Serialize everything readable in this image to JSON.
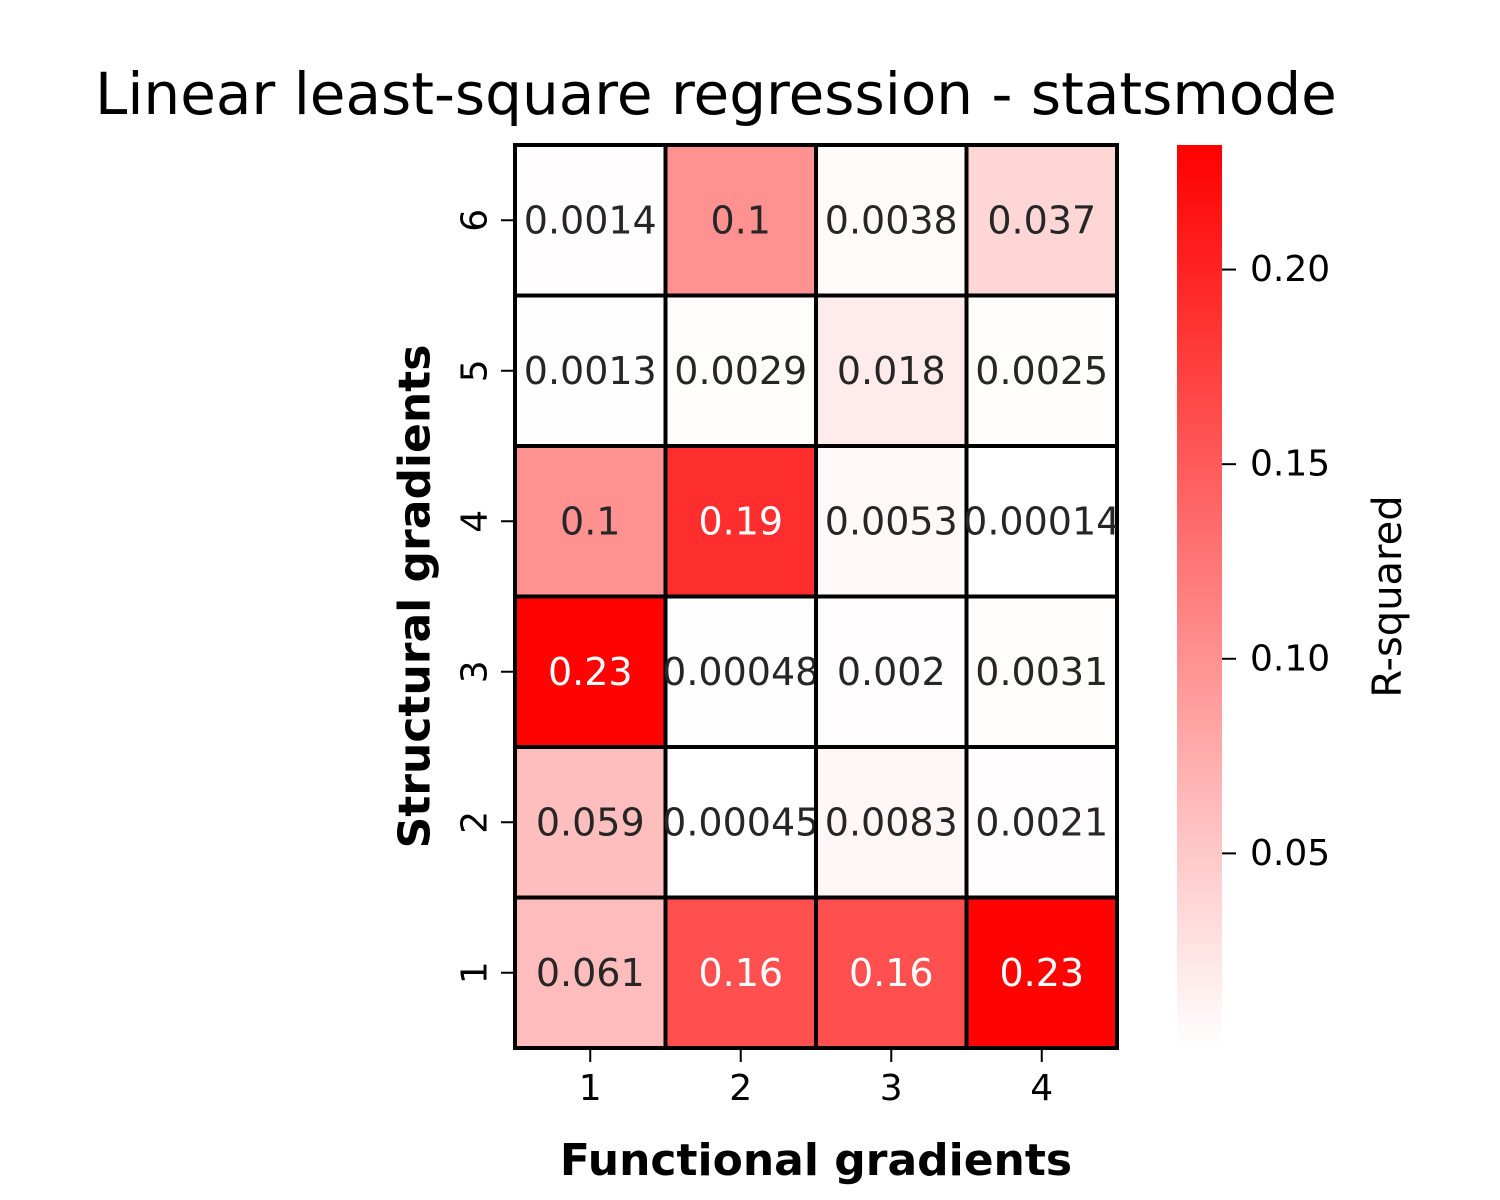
{
  "chart_data": {
    "type": "heatmap",
    "title": "Linear least-square regression - statsmode",
    "xlabel": "Functional gradients",
    "ylabel": "Structural gradients",
    "x_categories": [
      "1",
      "2",
      "3",
      "4"
    ],
    "y_categories": [
      "6",
      "5",
      "4",
      "3",
      "2",
      "1"
    ],
    "cells": [
      [
        "0.0014",
        "0.1",
        "0.0038",
        "0.037"
      ],
      [
        "0.0013",
        "0.0029",
        "0.018",
        "0.0025"
      ],
      [
        "0.1",
        "0.19",
        "0.0053",
        "0.00014"
      ],
      [
        "0.23",
        "0.00048",
        "0.002",
        "0.0031"
      ],
      [
        "0.059",
        "0.00045",
        "0.0083",
        "0.0021"
      ],
      [
        "0.061",
        "0.16",
        "0.16",
        "0.23"
      ]
    ],
    "colorbar": {
      "label": "R-squared",
      "range": [
        0,
        0.232
      ],
      "ticks": [
        "0.05",
        "0.10",
        "0.15",
        "0.20"
      ],
      "tick_values": [
        0.05,
        0.1,
        0.15,
        0.2
      ],
      "color_low": "#ffffff",
      "color_high": "#ff0000"
    },
    "grid": true,
    "text_color_dark": "#262626",
    "text_color_light": "#ffffff"
  }
}
